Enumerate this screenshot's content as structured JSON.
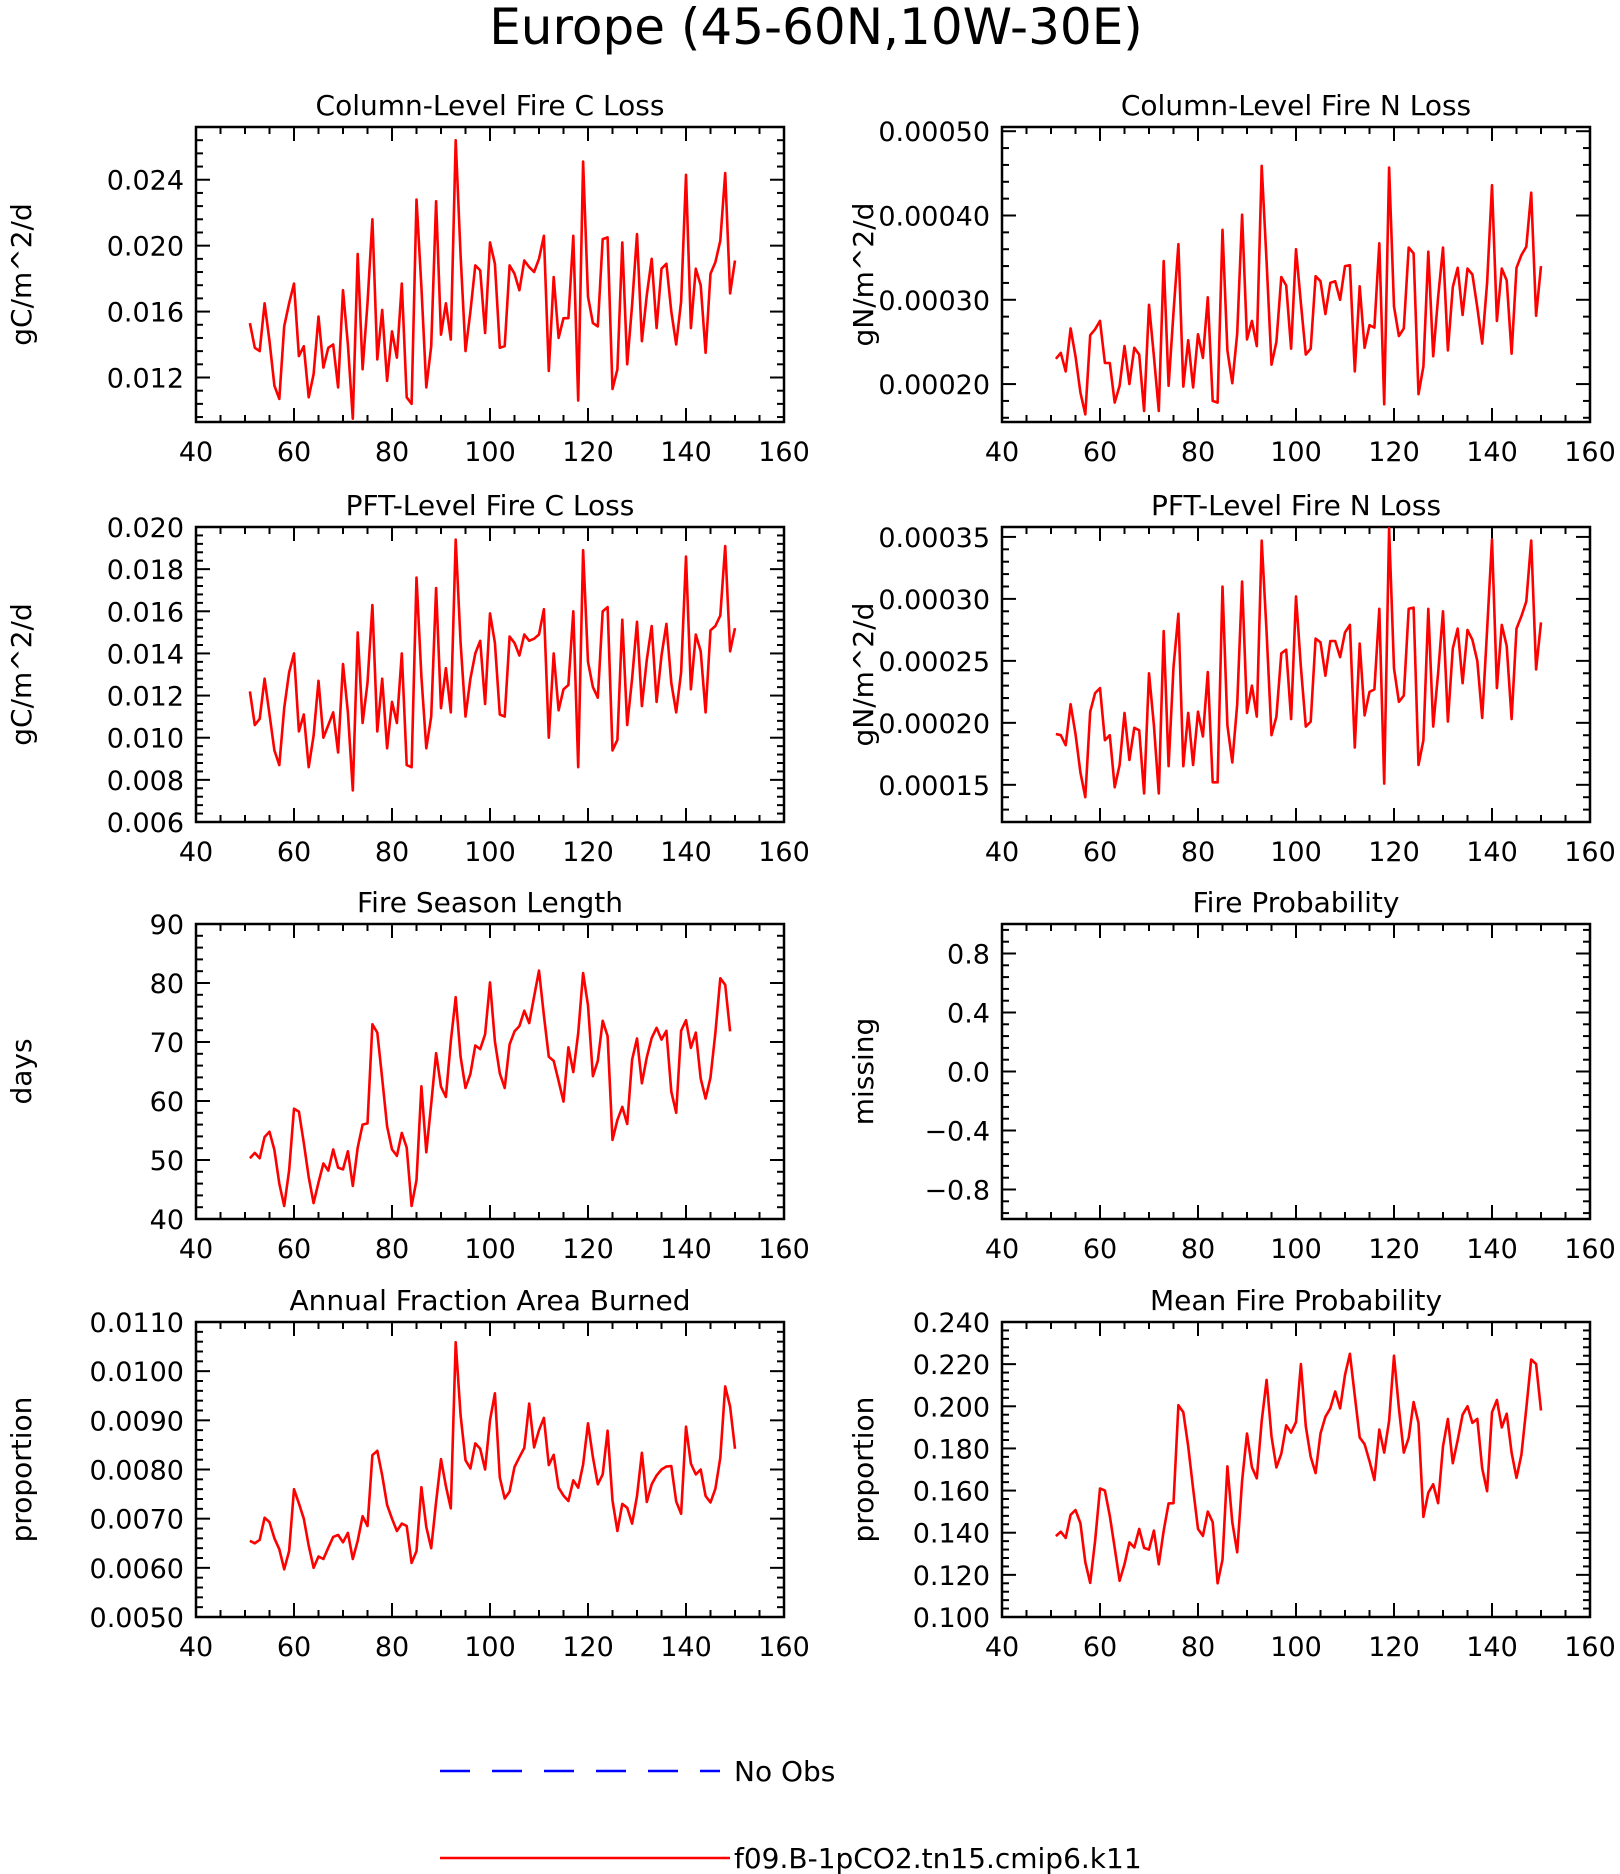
{
  "figure": {
    "title": "Europe (45-60N,10W-30E)"
  },
  "legend": {
    "entries": [
      {
        "label": "No Obs",
        "color": "#0000ff",
        "dash": "dashed"
      },
      {
        "label": "f09.B-1pCO2.tn15.cmip6.k11",
        "color": "#ff0000",
        "dash": "solid"
      }
    ]
  },
  "chart_data": [
    {
      "type": "line",
      "title": "Column-Level Fire C Loss",
      "ylabel": "gC/m^2/d",
      "xlim": [
        40,
        160
      ],
      "ylim": [
        0.0093,
        0.0272
      ],
      "xticks": [
        40,
        60,
        80,
        100,
        120,
        140,
        160
      ],
      "yticks": [
        0.012,
        0.016,
        0.02,
        0.024
      ],
      "ytick_labels": [
        "0.012",
        "0.016",
        "0.020",
        "0.024"
      ],
      "x_start": 51,
      "series": [
        {
          "color": "#ff0000",
          "values": [
            0.0153,
            0.0138,
            0.0136,
            0.0165,
            0.0142,
            0.0115,
            0.0107,
            0.0151,
            0.0165,
            0.0177,
            0.0133,
            0.0139,
            0.0108,
            0.0122,
            0.0157,
            0.0126,
            0.0138,
            0.014,
            0.0114,
            0.0173,
            0.014,
            0.0095,
            0.0195,
            0.0125,
            0.0165,
            0.0216,
            0.0131,
            0.0161,
            0.0118,
            0.0148,
            0.0132,
            0.0177,
            0.0108,
            0.0104,
            0.0228,
            0.0175,
            0.0114,
            0.0139,
            0.0227,
            0.0146,
            0.0165,
            0.0143,
            0.0264,
            0.0194,
            0.0136,
            0.016,
            0.0188,
            0.0185,
            0.0147,
            0.0202,
            0.0189,
            0.0138,
            0.0139,
            0.0188,
            0.0183,
            0.0173,
            0.0191,
            0.0187,
            0.0184,
            0.0192,
            0.0206,
            0.0124,
            0.0181,
            0.0144,
            0.0156,
            0.0156,
            0.0206,
            0.0106,
            0.0251,
            0.0169,
            0.0153,
            0.0151,
            0.0204,
            0.0205,
            0.0113,
            0.0125,
            0.0202,
            0.0128,
            0.0164,
            0.0207,
            0.0142,
            0.017,
            0.0192,
            0.015,
            0.0186,
            0.0189,
            0.016,
            0.014,
            0.0166,
            0.0243,
            0.015,
            0.0186,
            0.0176,
            0.0135,
            0.0183,
            0.019,
            0.0203,
            0.0244,
            0.0171,
            0.0191
          ]
        }
      ]
    },
    {
      "type": "line",
      "title": "Column-Level Fire N Loss",
      "ylabel": "gN/m^2/d",
      "xlim": [
        40,
        160
      ],
      "ylim": [
        0.000155,
        0.000505
      ],
      "xticks": [
        40,
        60,
        80,
        100,
        120,
        140,
        160
      ],
      "yticks": [
        0.0002,
        0.0003,
        0.0004,
        0.0005
      ],
      "ytick_labels": [
        "0.00020",
        "0.00030",
        "0.00040",
        "0.00050"
      ],
      "x_start": 51,
      "series": [
        {
          "color": "#ff0000",
          "values": [
            0.00023,
            0.000237,
            0.000215,
            0.000266,
            0.000233,
            0.00019,
            0.000164,
            0.000258,
            0.000265,
            0.000275,
            0.000225,
            0.000225,
            0.000178,
            0.000198,
            0.000245,
            0.0002,
            0.000243,
            0.000235,
            0.000168,
            0.000294,
            0.000233,
            0.000168,
            0.000346,
            0.000198,
            0.000285,
            0.000366,
            0.000197,
            0.000252,
            0.000196,
            0.000259,
            0.000231,
            0.000303,
            0.00018,
            0.000178,
            0.000383,
            0.00024,
            0.000201,
            0.00026,
            0.000401,
            0.000253,
            0.000275,
            0.000245,
            0.000459,
            0.000345,
            0.000223,
            0.00025,
            0.000327,
            0.000317,
            0.000242,
            0.00036,
            0.000296,
            0.000235,
            0.000242,
            0.000328,
            0.000322,
            0.000283,
            0.00032,
            0.000322,
            0.0003,
            0.00034,
            0.000341,
            0.000215,
            0.000316,
            0.000243,
            0.00027,
            0.000267,
            0.000367,
            0.000176,
            0.000457,
            0.000292,
            0.000257,
            0.000266,
            0.000362,
            0.000355,
            0.000188,
            0.000221,
            0.000357,
            0.000233,
            0.000303,
            0.000362,
            0.00024,
            0.000315,
            0.000338,
            0.000282,
            0.000337,
            0.00033,
            0.000291,
            0.000248,
            0.00032,
            0.000436,
            0.000275,
            0.000337,
            0.000323,
            0.000236,
            0.000338,
            0.000353,
            0.000363,
            0.000427,
            0.000281,
            0.00034
          ]
        }
      ]
    },
    {
      "type": "line",
      "title": "PFT-Level Fire C Loss",
      "ylabel": "gC/m^2/d",
      "xlim": [
        40,
        160
      ],
      "ylim": [
        0.006,
        0.02
      ],
      "xticks": [
        40,
        60,
        80,
        100,
        120,
        140,
        160
      ],
      "yticks": [
        0.006,
        0.008,
        0.01,
        0.012,
        0.014,
        0.016,
        0.018,
        0.02
      ],
      "ytick_labels": [
        "0.006",
        "0.008",
        "0.010",
        "0.012",
        "0.014",
        "0.016",
        "0.018",
        "0.020"
      ],
      "x_start": 51,
      "series": [
        {
          "color": "#ff0000",
          "values": [
            0.0122,
            0.0106,
            0.0109,
            0.0128,
            0.0111,
            0.0094,
            0.0087,
            0.0114,
            0.0131,
            0.014,
            0.0103,
            0.0111,
            0.0086,
            0.0101,
            0.0127,
            0.01,
            0.0106,
            0.0112,
            0.0093,
            0.0135,
            0.0112,
            0.0075,
            0.015,
            0.0107,
            0.0126,
            0.0163,
            0.0103,
            0.0128,
            0.0095,
            0.0117,
            0.0107,
            0.014,
            0.0087,
            0.0086,
            0.0176,
            0.0129,
            0.0095,
            0.011,
            0.0171,
            0.0114,
            0.0133,
            0.0112,
            0.0194,
            0.0145,
            0.011,
            0.0128,
            0.014,
            0.0146,
            0.0116,
            0.0159,
            0.0145,
            0.0111,
            0.011,
            0.0148,
            0.0145,
            0.0139,
            0.0149,
            0.0146,
            0.0147,
            0.0149,
            0.0161,
            0.01,
            0.014,
            0.0113,
            0.0123,
            0.0125,
            0.016,
            0.0086,
            0.0189,
            0.0136,
            0.0124,
            0.0119,
            0.016,
            0.0162,
            0.0094,
            0.0099,
            0.0156,
            0.0106,
            0.0128,
            0.0155,
            0.0115,
            0.0137,
            0.0153,
            0.0117,
            0.0139,
            0.0154,
            0.0126,
            0.0112,
            0.0131,
            0.0186,
            0.0123,
            0.0149,
            0.0141,
            0.0112,
            0.0151,
            0.0153,
            0.0158,
            0.0191,
            0.0141,
            0.0152
          ]
        }
      ]
    },
    {
      "type": "line",
      "title": "PFT-Level Fire N Loss",
      "ylabel": "gN/m^2/d",
      "xlim": [
        40,
        160
      ],
      "ylim": [
        0.00012,
        0.000358
      ],
      "xticks": [
        40,
        60,
        80,
        100,
        120,
        140,
        160
      ],
      "yticks": [
        0.00015,
        0.0002,
        0.00025,
        0.0003,
        0.00035
      ],
      "ytick_labels": [
        "0.00015",
        "0.00020",
        "0.00025",
        "0.00030",
        "0.00035"
      ],
      "x_start": 51,
      "series": [
        {
          "color": "#ff0000",
          "values": [
            0.000191,
            0.00019,
            0.000182,
            0.000215,
            0.000191,
            0.00016,
            0.00014,
            0.000209,
            0.000224,
            0.000228,
            0.000186,
            0.00019,
            0.000148,
            0.000166,
            0.000208,
            0.00017,
            0.000196,
            0.000194,
            0.000143,
            0.00024,
            0.000198,
            0.000143,
            0.000274,
            0.000165,
            0.000245,
            0.000288,
            0.000165,
            0.000208,
            0.000166,
            0.000209,
            0.000189,
            0.000241,
            0.000152,
            0.000152,
            0.00031,
            0.000198,
            0.000168,
            0.000215,
            0.000314,
            0.000208,
            0.00023,
            0.000205,
            0.000347,
            0.000273,
            0.00019,
            0.000205,
            0.000256,
            0.000259,
            0.000203,
            0.000302,
            0.000245,
            0.000197,
            0.000201,
            0.000268,
            0.000265,
            0.000238,
            0.000266,
            0.000266,
            0.000253,
            0.000273,
            0.000279,
            0.00018,
            0.000264,
            0.000206,
            0.000225,
            0.000227,
            0.000292,
            0.000151,
            0.000357,
            0.000244,
            0.000217,
            0.000222,
            0.000292,
            0.000293,
            0.000166,
            0.000186,
            0.000292,
            0.000197,
            0.00024,
            0.00029,
            0.000201,
            0.00026,
            0.000276,
            0.000232,
            0.000275,
            0.000267,
            0.00025,
            0.000204,
            0.000275,
            0.000348,
            0.000228,
            0.000279,
            0.000262,
            0.000203,
            0.000276,
            0.000286,
            0.000298,
            0.000347,
            0.000243,
            0.000281
          ]
        }
      ]
    },
    {
      "type": "line",
      "title": "Fire Season Length",
      "ylabel": "days",
      "xlim": [
        40,
        160
      ],
      "ylim": [
        40,
        90
      ],
      "xticks": [
        40,
        60,
        80,
        100,
        120,
        140,
        160
      ],
      "yticks": [
        40,
        50,
        60,
        70,
        80,
        90
      ],
      "ytick_labels": [
        "40",
        "50",
        "60",
        "70",
        "80",
        "90"
      ],
      "x_start": 51,
      "series": [
        {
          "color": "#ff0000",
          "values": [
            50.3,
            51.2,
            50.3,
            53.9,
            54.8,
            51.7,
            46.0,
            42.2,
            48.2,
            58.7,
            58.2,
            52.9,
            47.1,
            42.7,
            46.2,
            49.4,
            48.2,
            51.8,
            48.7,
            48.4,
            51.5,
            45.6,
            52.1,
            56.0,
            56.2,
            73.0,
            71.6,
            63.8,
            55.7,
            51.8,
            50.7,
            54.6,
            52.1,
            42.2,
            46.6,
            62.5,
            51.3,
            59.5,
            68.1,
            62.4,
            60.7,
            70.1,
            77.6,
            67.5,
            62.2,
            64.6,
            69.4,
            68.8,
            71.3,
            80.1,
            70.1,
            64.7,
            62.2,
            69.6,
            71.8,
            72.7,
            75.3,
            73.2,
            77.7,
            82.1,
            74.5,
            67.5,
            66.8,
            63.4,
            59.9,
            69.1,
            64.9,
            71.5,
            81.7,
            76.2,
            64.2,
            66.8,
            73.6,
            71.0,
            53.4,
            56.8,
            59.0,
            56.1,
            67.0,
            70.6,
            63.0,
            67.4,
            70.7,
            72.4,
            70.4,
            71.9,
            61.6,
            58.0,
            71.9,
            73.7,
            69.0,
            71.6,
            63.8,
            60.4,
            64.0,
            71.6,
            80.8,
            79.7,
            71.8
          ]
        }
      ]
    },
    {
      "type": "line",
      "title": "Fire Probability",
      "ylabel": "missing",
      "xlim": [
        40,
        160
      ],
      "ylim": [
        -1,
        1
      ],
      "xticks": [
        40,
        60,
        80,
        100,
        120,
        140,
        160
      ],
      "yticks": [
        -0.8,
        -0.4,
        0.0,
        0.4,
        0.8
      ],
      "ytick_labels": [
        "−0.8",
        "−0.4",
        "0.0",
        "0.4",
        "0.8"
      ],
      "x_start": 51,
      "series": []
    },
    {
      "type": "line",
      "title": "Annual Fraction Area Burned",
      "ylabel": "proportion",
      "xlim": [
        40,
        160
      ],
      "ylim": [
        0.005,
        0.011
      ],
      "xticks": [
        40,
        60,
        80,
        100,
        120,
        140,
        160
      ],
      "yticks": [
        0.005,
        0.006,
        0.007,
        0.008,
        0.009,
        0.01,
        0.011
      ],
      "ytick_labels": [
        "0.0050",
        "0.0060",
        "0.0070",
        "0.0080",
        "0.0090",
        "0.0100",
        "0.0110"
      ],
      "x_start": 51,
      "series": [
        {
          "color": "#ff0000",
          "values": [
            0.00655,
            0.0065,
            0.00657,
            0.00702,
            0.00693,
            0.0066,
            0.00638,
            0.00597,
            0.00634,
            0.0076,
            0.00731,
            0.007,
            0.00645,
            0.006,
            0.00623,
            0.00618,
            0.00641,
            0.00663,
            0.00667,
            0.00652,
            0.00671,
            0.00618,
            0.00655,
            0.00705,
            0.00685,
            0.00829,
            0.00838,
            0.00788,
            0.00728,
            0.007,
            0.00675,
            0.0069,
            0.00685,
            0.0061,
            0.00634,
            0.00764,
            0.00683,
            0.0064,
            0.00734,
            0.00821,
            0.00766,
            0.00721,
            0.01059,
            0.0091,
            0.00819,
            0.00802,
            0.00853,
            0.00842,
            0.008,
            0.009,
            0.00955,
            0.00784,
            0.00741,
            0.00755,
            0.00805,
            0.00825,
            0.00844,
            0.00934,
            0.00845,
            0.0088,
            0.00905,
            0.00809,
            0.0083,
            0.00763,
            0.00747,
            0.00736,
            0.00778,
            0.00763,
            0.0081,
            0.00894,
            0.00825,
            0.0077,
            0.0079,
            0.00879,
            0.00737,
            0.00675,
            0.0073,
            0.00722,
            0.0069,
            0.00746,
            0.00834,
            0.00734,
            0.0077,
            0.00788,
            0.008,
            0.00806,
            0.00807,
            0.00735,
            0.0071,
            0.00887,
            0.00812,
            0.0079,
            0.008,
            0.00746,
            0.00733,
            0.00761,
            0.00824,
            0.00969,
            0.00928,
            0.00842
          ]
        }
      ]
    },
    {
      "type": "line",
      "title": "Mean Fire Probability",
      "ylabel": "proportion",
      "xlim": [
        40,
        160
      ],
      "ylim": [
        0.1,
        0.24
      ],
      "xticks": [
        40,
        60,
        80,
        100,
        120,
        140,
        160
      ],
      "yticks": [
        0.1,
        0.12,
        0.14,
        0.16,
        0.18,
        0.2,
        0.22,
        0.24
      ],
      "ytick_labels": [
        "0.100",
        "0.120",
        "0.140",
        "0.160",
        "0.180",
        "0.200",
        "0.220",
        "0.240"
      ],
      "x_start": 51,
      "series": [
        {
          "color": "#ff0000",
          "values": [
            0.1384,
            0.1405,
            0.1375,
            0.1485,
            0.1508,
            0.1445,
            0.126,
            0.1162,
            0.1361,
            0.161,
            0.16,
            0.148,
            0.1328,
            0.1172,
            0.125,
            0.1354,
            0.133,
            0.1418,
            0.1328,
            0.132,
            0.141,
            0.125,
            0.141,
            0.1539,
            0.154,
            0.2005,
            0.1972,
            0.181,
            0.161,
            0.1418,
            0.1385,
            0.15,
            0.145,
            0.116,
            0.1272,
            0.1715,
            0.145,
            0.1307,
            0.1646,
            0.1871,
            0.1711,
            0.1658,
            0.193,
            0.2125,
            0.1857,
            0.171,
            0.1775,
            0.191,
            0.1875,
            0.1925,
            0.22,
            0.1905,
            0.176,
            0.1683,
            0.1871,
            0.195,
            0.199,
            0.207,
            0.199,
            0.2149,
            0.2249,
            0.205,
            0.1852,
            0.182,
            0.174,
            0.165,
            0.189,
            0.178,
            0.193,
            0.224,
            0.199,
            0.178,
            0.185,
            0.202,
            0.192,
            0.1475,
            0.159,
            0.163,
            0.154,
            0.181,
            0.194,
            0.173,
            0.184,
            0.196,
            0.2,
            0.1921,
            0.194,
            0.1705,
            0.1597,
            0.1971,
            0.203,
            0.19,
            0.1965,
            0.178,
            0.166,
            0.177,
            0.199,
            0.2222,
            0.22,
            0.198
          ]
        }
      ]
    }
  ]
}
